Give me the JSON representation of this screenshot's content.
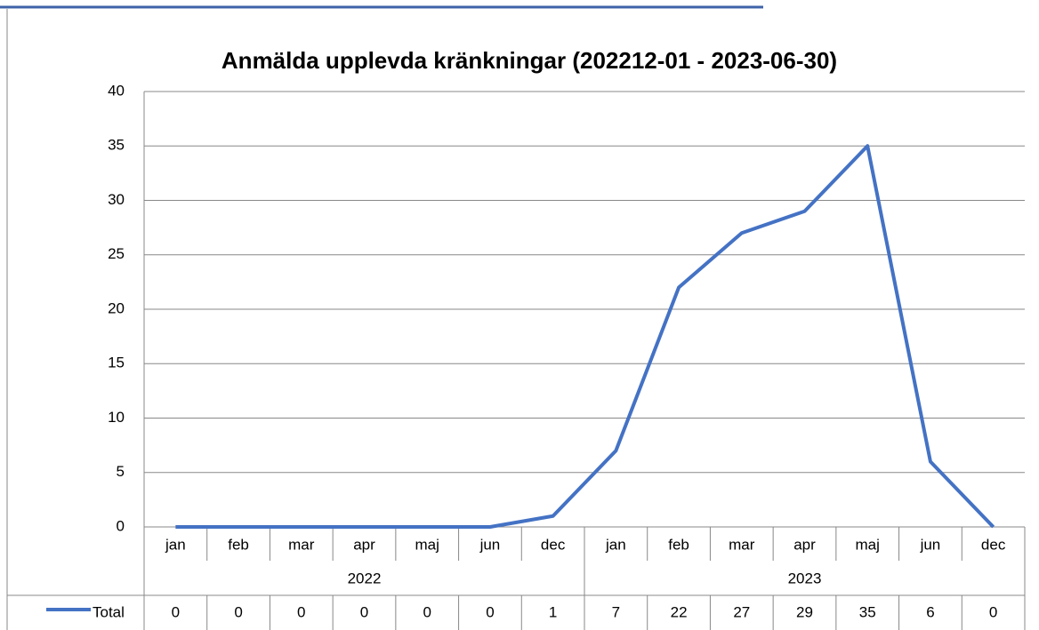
{
  "chart_data": {
    "type": "line",
    "title": "Anmälda upplevda kränkningar (202212-01 - 2023-06-30)",
    "groups": [
      {
        "label": "2022",
        "categories": [
          "jan",
          "feb",
          "mar",
          "apr",
          "maj",
          "jun",
          "dec"
        ]
      },
      {
        "label": "2023",
        "categories": [
          "jan",
          "feb",
          "mar",
          "apr",
          "maj",
          "jun",
          "dec"
        ]
      }
    ],
    "series": [
      {
        "name": "Total",
        "color": "#4472c4",
        "values": [
          0,
          0,
          0,
          0,
          0,
          0,
          1,
          7,
          22,
          27,
          29,
          35,
          6,
          0
        ]
      }
    ],
    "ylim": [
      0,
      40
    ],
    "yticks": [
      0,
      5,
      10,
      15,
      20,
      25,
      30,
      35,
      40
    ],
    "grid": true
  }
}
